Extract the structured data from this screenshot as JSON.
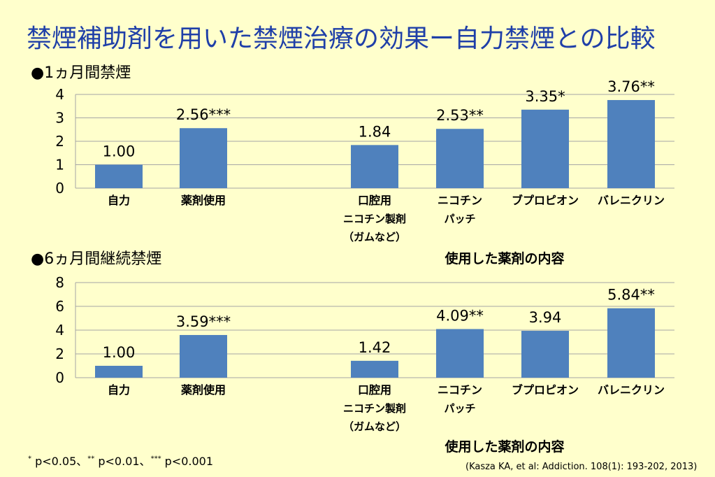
{
  "title": "禁煙補助剤を用いた禁煙治療の効果ー自力禁煙との比較",
  "colors": {
    "bar": "#4F81BD",
    "title": "#1F3FA8",
    "grid": "#A6A6A6",
    "background": "#FFFFCC"
  },
  "category_lines": [
    [
      "自力"
    ],
    [
      "薬剤使用"
    ],
    [
      "口腔用",
      "ニコチン製剤",
      "（ガムなど）"
    ],
    [
      "ニコチン",
      "パッチ"
    ],
    [
      "ブプロピオン"
    ],
    [
      "バレニクリン"
    ]
  ],
  "xlabel": "使用した薬剤の内容",
  "chart_data": [
    {
      "type": "bar",
      "title": "●1ヵ月間禁煙",
      "categories": [
        "自力",
        "薬剤使用",
        "口腔用ニコチン製剤（ガムなど）",
        "ニコチンパッチ",
        "ブプロピオン",
        "バレニクリン"
      ],
      "values": [
        1.0,
        2.56,
        1.84,
        2.53,
        3.35,
        3.76
      ],
      "data_labels": [
        "1.00",
        "2.56***",
        "1.84",
        "2.53**",
        "3.35*",
        "3.76**"
      ],
      "ylim": [
        0,
        4
      ],
      "yticks": [
        0,
        1,
        2,
        3,
        4
      ],
      "grid": true
    },
    {
      "type": "bar",
      "title": "●6ヵ月間継続禁煙",
      "categories": [
        "自力",
        "薬剤使用",
        "口腔用ニコチン製剤（ガムなど）",
        "ニコチンパッチ",
        "ブプロピオン",
        "バレニクリン"
      ],
      "values": [
        1.0,
        3.59,
        1.42,
        4.09,
        3.94,
        5.84
      ],
      "data_labels": [
        "1.00",
        "3.59***",
        "1.42",
        "4.09**",
        "3.94",
        "5.84**"
      ],
      "ylim": [
        0,
        8
      ],
      "yticks": [
        0,
        2,
        4,
        6,
        8
      ],
      "grid": true
    }
  ],
  "footnote": {
    "p1_sup": "*",
    "p1": " p<0.05、",
    "p2_sup": "**",
    "p2": " p<0.01、",
    "p3_sup": "***",
    "p3": " p<0.001"
  },
  "citation": "(Kasza KA, et al: Addiction. 108(1): 193-202, 2013)"
}
